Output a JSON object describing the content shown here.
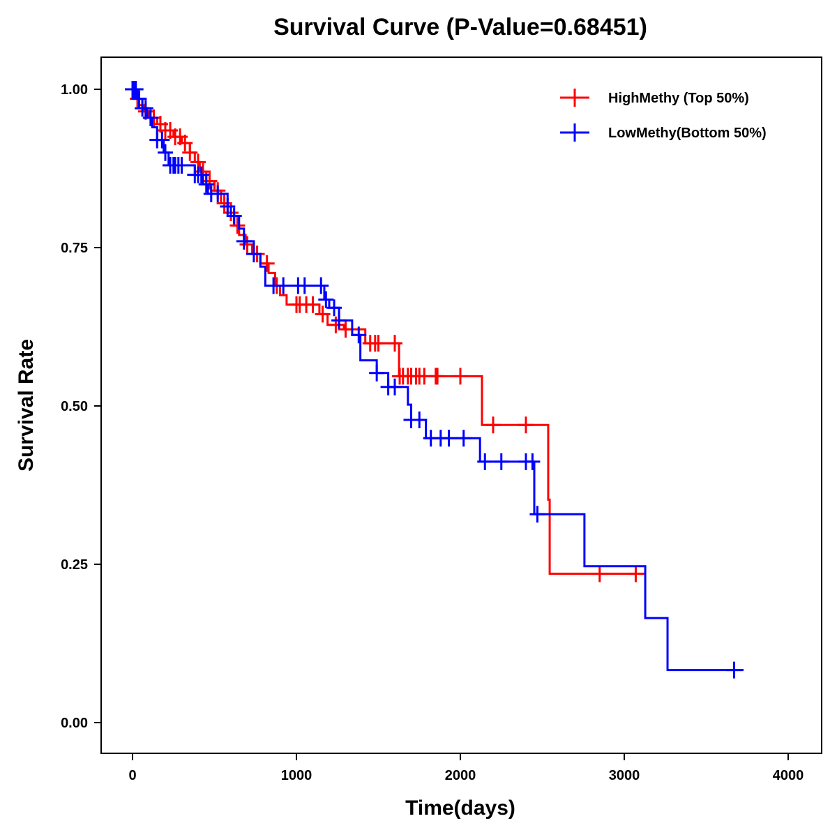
{
  "chart_data": {
    "type": "line",
    "title": "Survival Curve (P-Value=0.68451)",
    "xlabel": "Time(days)",
    "ylabel": "Survival Rate",
    "xlim": [
      -200,
      4200
    ],
    "ylim": [
      -0.05,
      1.05
    ],
    "xticks": [
      "0",
      "1000",
      "2000",
      "3000",
      "4000"
    ],
    "xtick_values": [
      0,
      1000,
      2000,
      3000,
      4000
    ],
    "yticks": [
      "0.00",
      "0.25",
      "0.50",
      "0.75",
      "1.00"
    ],
    "ytick_values": [
      0,
      0.25,
      0.5,
      0.75,
      1.0
    ],
    "legend_position": "top-right",
    "grid": false,
    "series": [
      {
        "name": "HighMethy (Top 50%)",
        "color": "#ff0000",
        "steps": [
          [
            0,
            1.0
          ],
          [
            20,
            0.985
          ],
          [
            40,
            0.975
          ],
          [
            70,
            0.965
          ],
          [
            100,
            0.955
          ],
          [
            150,
            0.945
          ],
          [
            200,
            0.935
          ],
          [
            250,
            0.925
          ],
          [
            300,
            0.915
          ],
          [
            350,
            0.9
          ],
          [
            380,
            0.885
          ],
          [
            410,
            0.87
          ],
          [
            450,
            0.855
          ],
          [
            500,
            0.84
          ],
          [
            540,
            0.82
          ],
          [
            580,
            0.805
          ],
          [
            620,
            0.785
          ],
          [
            650,
            0.77
          ],
          [
            690,
            0.755
          ],
          [
            730,
            0.74
          ],
          [
            780,
            0.725
          ],
          [
            830,
            0.71
          ],
          [
            870,
            0.69
          ],
          [
            900,
            0.675
          ],
          [
            940,
            0.66
          ],
          [
            1140,
            0.645
          ],
          [
            1190,
            0.628
          ],
          [
            1290,
            0.621
          ],
          [
            1420,
            0.599
          ],
          [
            1626,
            0.547
          ],
          [
            2132,
            0.47
          ],
          [
            2536,
            0.352
          ],
          [
            2545,
            0.235
          ],
          [
            3128,
            0.235
          ]
        ],
        "censored": [
          30,
          80,
          130,
          170,
          200,
          230,
          260,
          290,
          320,
          350,
          400,
          430,
          470,
          520,
          560,
          600,
          640,
          700,
          760,
          820,
          880,
          1000,
          1020,
          1060,
          1100,
          1160,
          1240,
          1300,
          1450,
          1480,
          1500,
          1600,
          1630,
          1650,
          1680,
          1700,
          1730,
          1750,
          1780,
          1850,
          1860,
          2000,
          2200,
          2400,
          2850,
          3070
        ]
      },
      {
        "name": "LowMethy(Bottom 50%)",
        "color": "#0000ff",
        "steps": [
          [
            0,
            1.0
          ],
          [
            30,
            0.985
          ],
          [
            60,
            0.97
          ],
          [
            90,
            0.955
          ],
          [
            120,
            0.94
          ],
          [
            150,
            0.92
          ],
          [
            190,
            0.9
          ],
          [
            220,
            0.88
          ],
          [
            380,
            0.865
          ],
          [
            430,
            0.85
          ],
          [
            460,
            0.835
          ],
          [
            580,
            0.815
          ],
          [
            600,
            0.8
          ],
          [
            650,
            0.78
          ],
          [
            680,
            0.76
          ],
          [
            740,
            0.74
          ],
          [
            780,
            0.72
          ],
          [
            810,
            0.69
          ],
          [
            1170,
            0.668
          ],
          [
            1200,
            0.655
          ],
          [
            1260,
            0.635
          ],
          [
            1340,
            0.612
          ],
          [
            1390,
            0.572
          ],
          [
            1490,
            0.552
          ],
          [
            1560,
            0.53
          ],
          [
            1680,
            0.502
          ],
          [
            1700,
            0.478
          ],
          [
            1790,
            0.449
          ],
          [
            2120,
            0.412
          ],
          [
            2451,
            0.329
          ],
          [
            2757,
            0.247
          ],
          [
            3128,
            0.165
          ],
          [
            3264,
            0.083
          ],
          [
            3728,
            0.083
          ]
        ],
        "censored": [
          0,
          10,
          20,
          40,
          60,
          80,
          110,
          150,
          180,
          200,
          230,
          250,
          260,
          280,
          300,
          380,
          400,
          420,
          450,
          480,
          520,
          580,
          620,
          680,
          740,
          860,
          920,
          1010,
          1050,
          1150,
          1180,
          1230,
          1260,
          1380,
          1490,
          1560,
          1600,
          1700,
          1750,
          1820,
          1880,
          1930,
          2020,
          2150,
          2250,
          2400,
          2440,
          2470,
          3670
        ]
      }
    ]
  }
}
